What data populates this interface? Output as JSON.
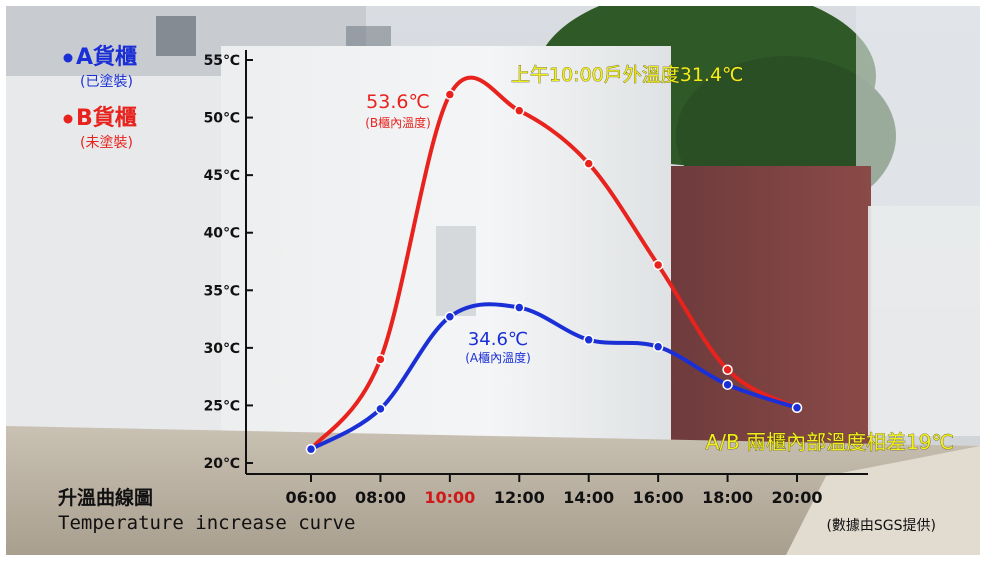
{
  "legend": [
    {
      "name": "A貨櫃",
      "sub": "(已塗裝)",
      "color": "#1a2fd6"
    },
    {
      "name": "B貨櫃",
      "sub": "(未塗裝)",
      "color": "#e8231e"
    }
  ],
  "annotations": {
    "b_peak_value": "53.6℃",
    "b_peak_sub": "(B櫃內溫度)",
    "a_peak_value": "34.6℃",
    "a_peak_sub": "(A櫃內溫度)",
    "outdoor": "上午10:00戶外溫度31.4℃",
    "diff": "A/B 兩櫃內部溫度相差19℃"
  },
  "caption": {
    "zh": "升溫曲線圖",
    "en": "Temperature increase curve",
    "source": "(數據由SGS提供)"
  },
  "chart_data": {
    "type": "line",
    "title": "升溫曲線圖",
    "subtitle": "Temperature increase curve",
    "x": [
      6,
      8,
      10,
      12,
      14,
      16,
      18,
      20
    ],
    "x_tick_labels": [
      "06:00",
      "08:00",
      "10:00",
      "12:00",
      "14:00",
      "16:00",
      "18:00",
      "20:00"
    ],
    "highlighted_tick": "10:00",
    "y_ticks": [
      20,
      25,
      30,
      35,
      40,
      45,
      50,
      55
    ],
    "y_tick_labels": [
      "20℃",
      "25℃",
      "30℃",
      "35℃",
      "40℃",
      "45℃",
      "50℃",
      "55℃"
    ],
    "xlim": [
      6,
      20
    ],
    "ylim": [
      20,
      55
    ],
    "grid": false,
    "legend_position": "top-left",
    "series": [
      {
        "name": "A貨櫃",
        "color": "#1a2fd6",
        "values": [
          21.2,
          24.7,
          32.7,
          33.5,
          30.7,
          30.1,
          26.8,
          24.8
        ]
      },
      {
        "name": "B貨櫃",
        "color": "#e8231e",
        "values": [
          21.2,
          29.0,
          52.0,
          50.6,
          46.0,
          37.2,
          28.1,
          24.8
        ]
      }
    ]
  }
}
